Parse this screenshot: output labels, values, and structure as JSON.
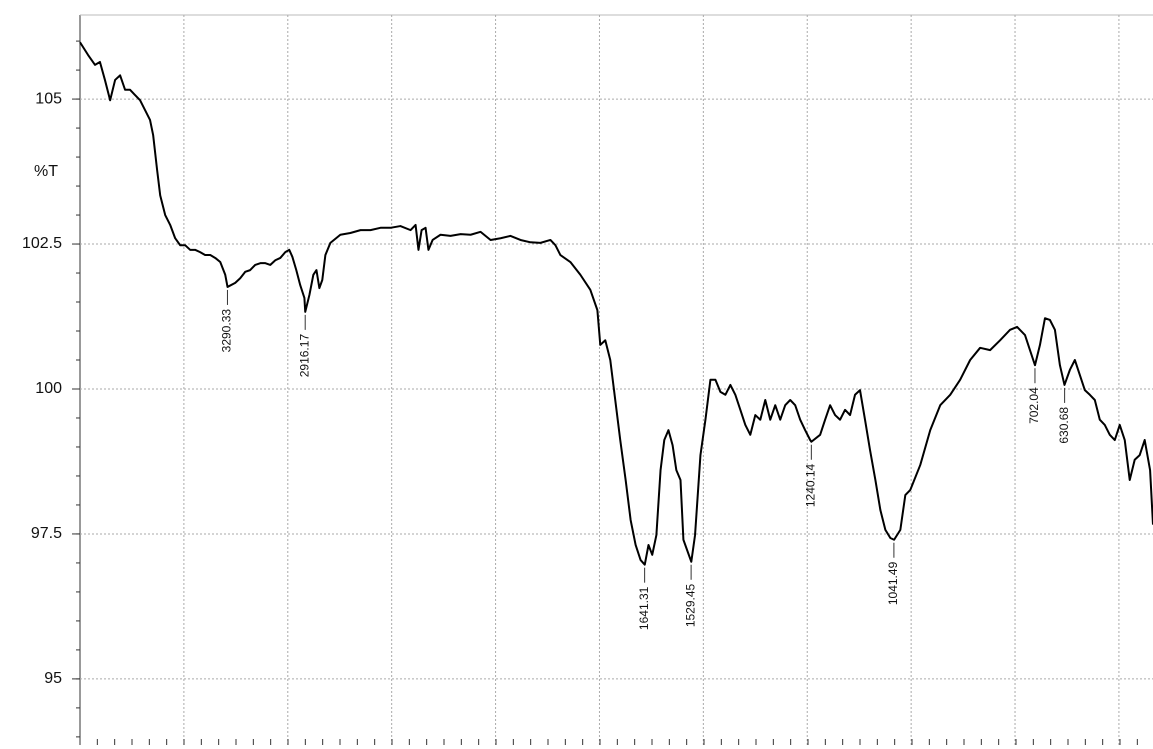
{
  "chart_data": {
    "type": "line",
    "ylabel": "%T",
    "color": "#000000",
    "grid": true,
    "xlim": [
      4000,
      418
    ],
    "x_scale_break": 2000,
    "xgrid": [
      3500,
      3000,
      2500,
      2000,
      1750,
      1500,
      1250,
      1000,
      750,
      500
    ],
    "ylim": [
      93.86,
      106.45
    ],
    "yticks": [
      95,
      97.5,
      100,
      102.5,
      105
    ],
    "x": [
      4000,
      3961,
      3928,
      3904,
      3880,
      3855,
      3831,
      3807,
      3783,
      3759,
      3735,
      3711,
      3687,
      3663,
      3648,
      3629,
      3614,
      3590,
      3566,
      3542,
      3518,
      3494,
      3470,
      3446,
      3422,
      3398,
      3373,
      3349,
      3325,
      3301,
      3290,
      3253,
      3229,
      3205,
      3181,
      3157,
      3132,
      3108,
      3084,
      3060,
      3036,
      3012,
      2993,
      2978,
      2959,
      2940,
      2920,
      2916,
      2896,
      2877,
      2862,
      2848,
      2834,
      2819,
      2795,
      2747,
      2699,
      2650,
      2602,
      2554,
      2506,
      2458,
      2409,
      2385,
      2371,
      2356,
      2337,
      2323,
      2303,
      2265,
      2217,
      2168,
      2120,
      2072,
      2024,
      1988,
      1964,
      1940,
      1916,
      1892,
      1868,
      1856,
      1844,
      1820,
      1796,
      1772,
      1755,
      1748,
      1736,
      1724,
      1712,
      1700,
      1687,
      1675,
      1663,
      1651,
      1641,
      1632,
      1623,
      1613,
      1603,
      1594,
      1584,
      1574,
      1565,
      1555,
      1548,
      1529,
      1520,
      1507,
      1495,
      1483,
      1471,
      1459,
      1447,
      1435,
      1423,
      1411,
      1399,
      1387,
      1375,
      1363,
      1351,
      1339,
      1327,
      1315,
      1303,
      1291,
      1279,
      1267,
      1255,
      1243,
      1240,
      1219,
      1207,
      1195,
      1183,
      1171,
      1159,
      1147,
      1135,
      1123,
      1111,
      1099,
      1086,
      1074,
      1062,
      1050,
      1041,
      1026,
      1014,
      1002,
      978,
      954,
      930,
      906,
      882,
      858,
      834,
      810,
      786,
      762,
      745,
      726,
      714,
      702,
      690,
      678,
      666,
      654,
      642,
      631,
      618,
      606,
      594,
      582,
      570,
      558,
      546,
      534,
      522,
      510,
      498,
      486,
      474,
      462,
      450,
      438,
      425,
      418
    ],
    "values": [
      105.98,
      105.76,
      105.59,
      105.64,
      105.33,
      104.98,
      105.33,
      105.41,
      105.16,
      105.16,
      105.07,
      104.98,
      104.81,
      104.64,
      104.38,
      103.78,
      103.34,
      103.0,
      102.83,
      102.6,
      102.48,
      102.48,
      102.4,
      102.4,
      102.36,
      102.31,
      102.31,
      102.26,
      102.19,
      101.97,
      101.76,
      101.83,
      101.91,
      102.02,
      102.05,
      102.14,
      102.17,
      102.17,
      102.14,
      102.22,
      102.26,
      102.36,
      102.4,
      102.28,
      102.05,
      101.79,
      101.57,
      101.33,
      101.62,
      101.97,
      102.05,
      101.74,
      101.88,
      102.31,
      102.52,
      102.66,
      102.69,
      102.74,
      102.74,
      102.78,
      102.78,
      102.81,
      102.74,
      102.83,
      102.4,
      102.74,
      102.78,
      102.4,
      102.57,
      102.66,
      102.64,
      102.67,
      102.66,
      102.71,
      102.57,
      102.6,
      102.64,
      102.57,
      102.53,
      102.52,
      102.57,
      102.48,
      102.31,
      102.19,
      101.97,
      101.71,
      101.36,
      100.76,
      100.84,
      100.5,
      99.81,
      99.12,
      98.43,
      97.74,
      97.31,
      97.05,
      96.97,
      97.31,
      97.14,
      97.48,
      98.6,
      99.12,
      99.29,
      99.03,
      98.6,
      98.43,
      97.4,
      97.02,
      97.48,
      98.86,
      99.47,
      100.16,
      100.16,
      99.95,
      99.9,
      100.07,
      99.9,
      99.64,
      99.38,
      99.21,
      99.55,
      99.47,
      99.81,
      99.47,
      99.72,
      99.47,
      99.72,
      99.81,
      99.72,
      99.47,
      99.29,
      99.12,
      99.09,
      99.21,
      99.47,
      99.72,
      99.55,
      99.47,
      99.64,
      99.55,
      99.9,
      99.98,
      99.47,
      98.95,
      98.43,
      97.91,
      97.57,
      97.43,
      97.4,
      97.57,
      98.17,
      98.26,
      98.69,
      99.29,
      99.72,
      99.9,
      100.16,
      100.5,
      100.71,
      100.67,
      100.84,
      101.02,
      101.07,
      100.93,
      100.67,
      100.41,
      100.76,
      101.22,
      101.19,
      101.02,
      100.41,
      100.07,
      100.33,
      100.5,
      100.24,
      99.98,
      99.9,
      99.81,
      99.47,
      99.38,
      99.21,
      99.12,
      99.38,
      99.12,
      98.43,
      98.78,
      98.86,
      99.12,
      98.6,
      97.66
    ],
    "peaks": [
      {
        "x": 3290.33,
        "y": 101.76
      },
      {
        "x": 2916.17,
        "y": 101.33
      },
      {
        "x": 1641.31,
        "y": 96.97
      },
      {
        "x": 1529.45,
        "y": 97.02
      },
      {
        "x": 1240.14,
        "y": 99.09
      },
      {
        "x": 1041.49,
        "y": 97.4
      },
      {
        "x": 702.04,
        "y": 100.41
      },
      {
        "x": 630.68,
        "y": 100.07
      }
    ]
  }
}
